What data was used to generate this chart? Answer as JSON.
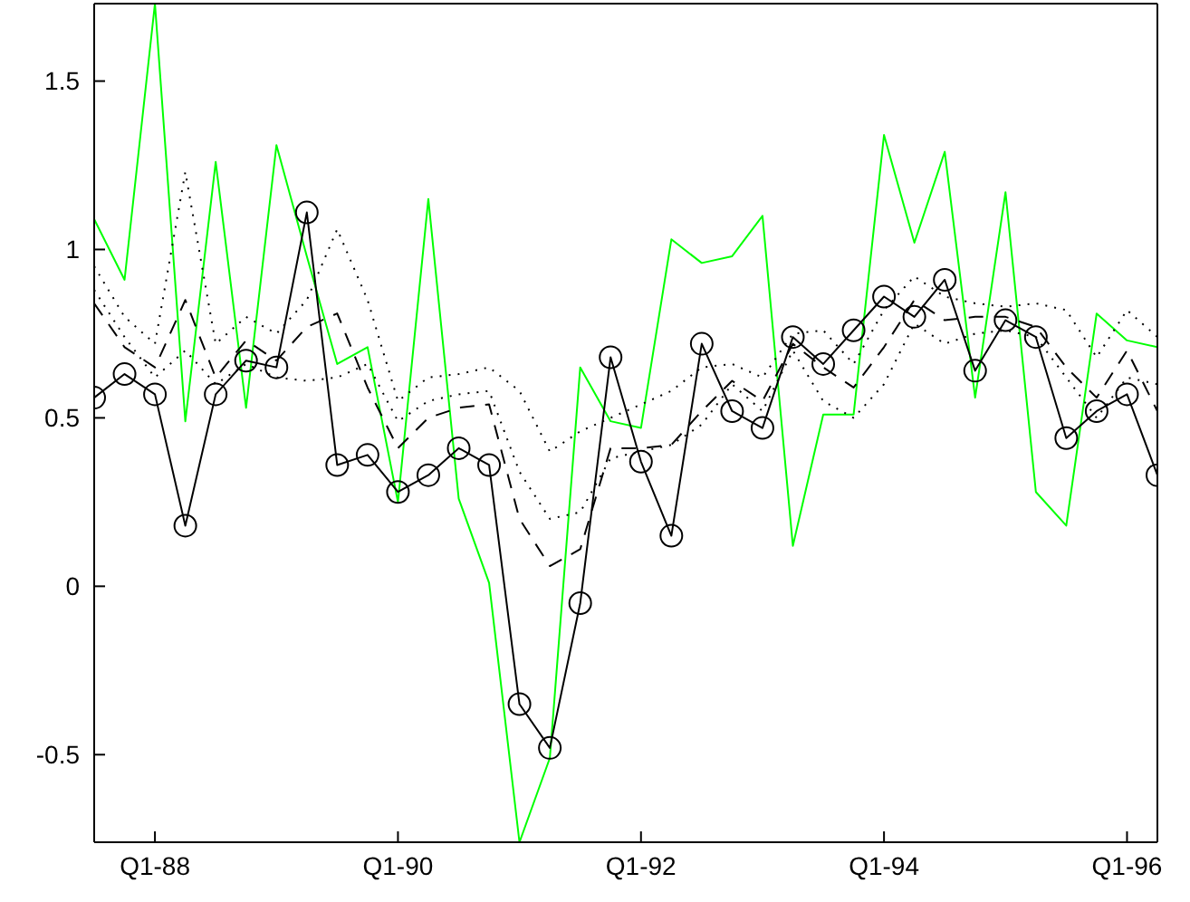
{
  "chart_data": {
    "type": "line",
    "categories": [
      null,
      null,
      "Q1-88",
      null,
      null,
      null,
      null,
      null,
      null,
      null,
      "Q1-90",
      null,
      null,
      null,
      null,
      null,
      null,
      null,
      "Q1-92",
      null,
      null,
      null,
      null,
      null,
      null,
      null,
      "Q1-94",
      null,
      null,
      null,
      null,
      null,
      null,
      null,
      "Q1-96",
      null
    ],
    "ylim": [
      -0.76,
      1.73
    ],
    "yticks": [
      -0.5,
      0,
      0.5,
      1,
      1.5
    ],
    "grid": false,
    "legend": false,
    "series": [
      {
        "color": "#00ff00",
        "line_style": "solid",
        "marker": "none",
        "values": [
          1.09,
          0.91,
          1.73,
          0.49,
          1.26,
          0.53,
          1.31,
          0.98,
          0.66,
          0.71,
          0.25,
          1.15,
          0.26,
          0.01,
          -0.76,
          -0.51,
          0.65,
          0.49,
          0.47,
          1.03,
          0.96,
          0.98,
          1.1,
          0.12,
          0.51,
          0.51,
          1.34,
          1.02,
          1.29,
          0.56,
          1.17,
          0.28,
          0.18,
          0.81,
          0.73,
          0.71
        ]
      },
      {
        "color": "#000000",
        "line_style": "dotted",
        "marker": "none",
        "values": [
          0.95,
          0.8,
          0.72,
          1.23,
          0.72,
          0.8,
          0.75,
          0.85,
          1.06,
          0.85,
          0.55,
          0.62,
          0.63,
          0.65,
          0.58,
          0.4,
          0.46,
          0.5,
          0.54,
          0.58,
          0.65,
          0.66,
          0.62,
          0.75,
          0.76,
          0.66,
          0.82,
          0.92,
          0.86,
          0.84,
          0.83,
          0.84,
          0.82,
          0.68,
          0.82,
          0.74
        ]
      },
      {
        "color": "#000000",
        "line_style": "dotted",
        "marker": "none",
        "values": [
          0.88,
          0.74,
          0.62,
          0.7,
          0.6,
          0.66,
          0.62,
          0.61,
          0.62,
          0.66,
          0.49,
          0.55,
          0.57,
          0.58,
          0.34,
          0.2,
          0.22,
          0.38,
          0.4,
          0.42,
          0.48,
          0.6,
          0.52,
          0.7,
          0.55,
          0.5,
          0.6,
          0.78,
          0.72,
          0.75,
          0.76,
          0.74,
          0.62,
          0.5,
          0.62,
          0.6
        ]
      },
      {
        "color": "#000000",
        "line_style": "dashed",
        "marker": "none",
        "values": [
          0.84,
          0.71,
          0.65,
          0.85,
          0.62,
          0.73,
          0.67,
          0.77,
          0.81,
          0.59,
          0.41,
          0.5,
          0.53,
          0.54,
          0.2,
          0.06,
          0.11,
          0.41,
          0.41,
          0.42,
          0.52,
          0.61,
          0.55,
          0.72,
          0.65,
          0.59,
          0.71,
          0.85,
          0.79,
          0.8,
          0.8,
          0.77,
          0.65,
          0.56,
          0.7,
          0.52
        ]
      },
      {
        "color": "#000000",
        "line_style": "solid",
        "marker": "circle",
        "values": [
          0.56,
          0.63,
          0.57,
          0.18,
          0.57,
          0.67,
          0.65,
          1.11,
          0.36,
          0.39,
          0.28,
          0.33,
          0.41,
          0.36,
          -0.35,
          -0.48,
          -0.05,
          0.68,
          0.37,
          0.15,
          0.72,
          0.52,
          0.47,
          0.74,
          0.66,
          0.76,
          0.86,
          0.8,
          0.91,
          0.64,
          0.79,
          0.74,
          0.44,
          0.52,
          0.57,
          0.33
        ]
      }
    ]
  }
}
